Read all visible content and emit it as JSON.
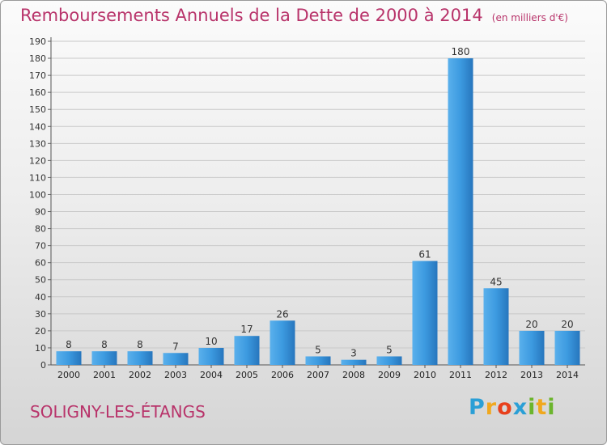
{
  "header": {
    "title": "Remboursements Annuels de la Dette de 2000 à 2014",
    "unit": "(en milliers d'€)"
  },
  "footer": {
    "commune": "SOLIGNY-LES-ÉTANGS",
    "logo": {
      "letters": [
        "P",
        "r",
        "o",
        "x",
        "i",
        "t",
        "i"
      ],
      "colors": [
        "#2a9fd6",
        "#f0a81e",
        "#e8401c",
        "#2a9fd6",
        "#6cb52d",
        "#f0a81e",
        "#6cb52d"
      ]
    }
  },
  "colors": {
    "title": "#b8336a",
    "bar": "#3c9ae0",
    "bar_light": "#5ab0ec",
    "bar_dark": "#2776bd",
    "grid": "#c9c9c9"
  },
  "chart_data": {
    "type": "bar",
    "categories": [
      "2000",
      "2001",
      "2002",
      "2003",
      "2004",
      "2005",
      "2006",
      "2007",
      "2008",
      "2009",
      "2010",
      "2011",
      "2012",
      "2013",
      "2014"
    ],
    "values": [
      8,
      8,
      8,
      7,
      10,
      17,
      26,
      5,
      3,
      5,
      61,
      180,
      45,
      20,
      20
    ],
    "title": "Remboursements Annuels de la Dette de 2000 à 2014",
    "ylim": [
      0,
      190
    ],
    "yticks": [
      0,
      10,
      20,
      30,
      40,
      50,
      60,
      70,
      80,
      90,
      100,
      110,
      120,
      130,
      140,
      150,
      160,
      170,
      180,
      190
    ],
    "grid": true,
    "data_labels": true
  }
}
